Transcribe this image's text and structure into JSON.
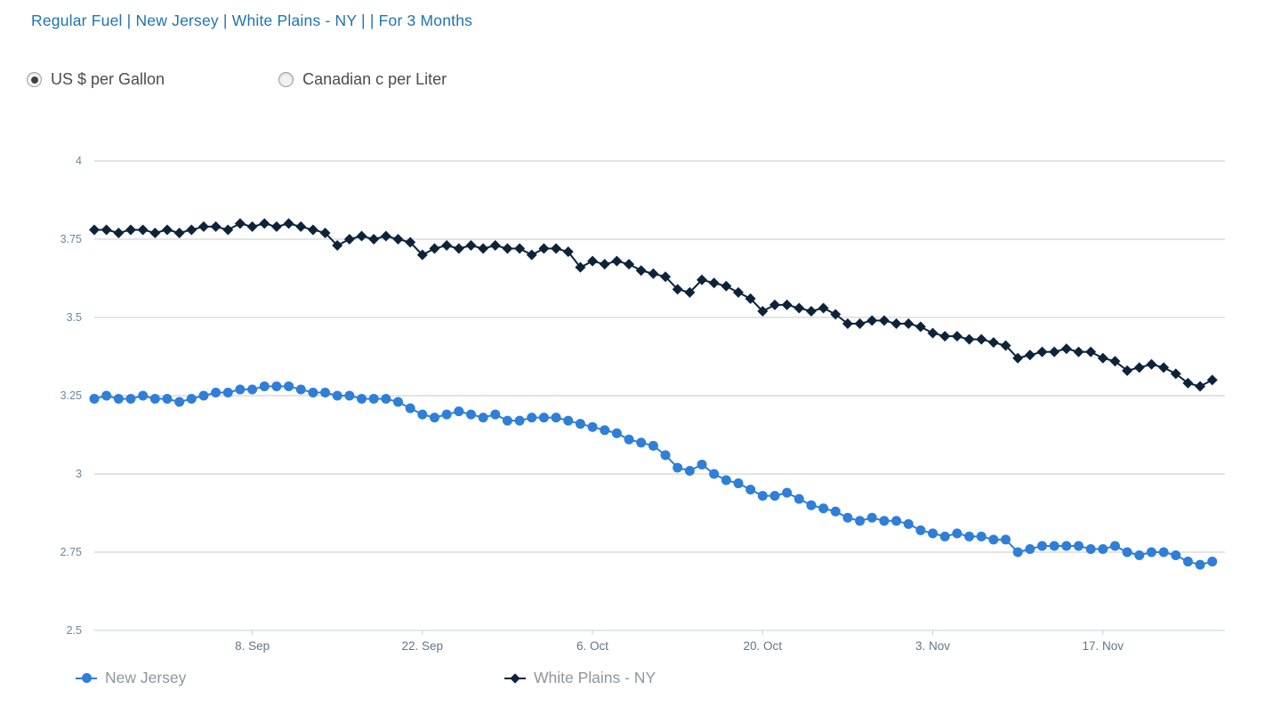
{
  "title": "Regular Fuel | New Jersey | White Plains - NY | | For 3 Months",
  "unit_toggle": {
    "options": [
      {
        "label": "US $ per Gallon",
        "selected": true
      },
      {
        "label": "Canadian c per Liter",
        "selected": false
      }
    ]
  },
  "colors": {
    "title_text": "#1f74b0",
    "radio_label": "#4c4c4c",
    "gridline": "#c9c9c9",
    "axis_line": "#c0d0e0",
    "y_label": "#6d869f",
    "x_label": "#607689",
    "legend_text": "#8f959b",
    "series_new_jersey": "#2f7ed8",
    "series_white_plains": "#0d233a"
  },
  "chart_data": {
    "type": "line",
    "ylim": [
      2.5,
      4
    ],
    "grid": true,
    "legend_position": "bottom",
    "x_unit": "days",
    "yticks": [
      {
        "value": 2.5,
        "label": "2.5"
      },
      {
        "value": 2.75,
        "label": "2.75"
      },
      {
        "value": 3,
        "label": "3"
      },
      {
        "value": 3.25,
        "label": "3.25"
      },
      {
        "value": 3.5,
        "label": "3.5"
      },
      {
        "value": 3.75,
        "label": "3.75"
      },
      {
        "value": 4,
        "label": "4"
      }
    ],
    "xticks": [
      {
        "index": 13,
        "label": "8. Sep"
      },
      {
        "index": 27,
        "label": "22. Sep"
      },
      {
        "index": 41,
        "label": "6. Oct"
      },
      {
        "index": 55,
        "label": "20. Oct"
      },
      {
        "index": 69,
        "label": "3. Nov"
      },
      {
        "index": 83,
        "label": "17. Nov"
      }
    ],
    "series": [
      {
        "name": "New Jersey",
        "color": "#2f7ed8",
        "marker": "circle",
        "values": [
          3.24,
          3.25,
          3.24,
          3.24,
          3.25,
          3.24,
          3.24,
          3.23,
          3.24,
          3.25,
          3.26,
          3.26,
          3.27,
          3.27,
          3.28,
          3.28,
          3.28,
          3.27,
          3.26,
          3.26,
          3.25,
          3.25,
          3.24,
          3.24,
          3.24,
          3.23,
          3.21,
          3.19,
          3.18,
          3.19,
          3.2,
          3.19,
          3.18,
          3.19,
          3.17,
          3.17,
          3.18,
          3.18,
          3.18,
          3.17,
          3.16,
          3.15,
          3.14,
          3.13,
          3.11,
          3.1,
          3.09,
          3.06,
          3.02,
          3.01,
          3.03,
          3.0,
          2.98,
          2.97,
          2.95,
          2.93,
          2.93,
          2.94,
          2.92,
          2.9,
          2.89,
          2.88,
          2.86,
          2.85,
          2.86,
          2.85,
          2.85,
          2.84,
          2.82,
          2.81,
          2.8,
          2.81,
          2.8,
          2.8,
          2.79,
          2.79,
          2.75,
          2.76,
          2.77,
          2.77,
          2.77,
          2.77,
          2.76,
          2.76,
          2.77,
          2.75,
          2.74,
          2.75,
          2.75,
          2.74,
          2.72,
          2.71,
          2.72
        ]
      },
      {
        "name": "White Plains - NY",
        "color": "#0d233a",
        "marker": "diamond",
        "values": [
          3.78,
          3.78,
          3.77,
          3.78,
          3.78,
          3.77,
          3.78,
          3.77,
          3.78,
          3.79,
          3.79,
          3.78,
          3.8,
          3.79,
          3.8,
          3.79,
          3.8,
          3.79,
          3.78,
          3.77,
          3.73,
          3.75,
          3.76,
          3.75,
          3.76,
          3.75,
          3.74,
          3.7,
          3.72,
          3.73,
          3.72,
          3.73,
          3.72,
          3.73,
          3.72,
          3.72,
          3.7,
          3.72,
          3.72,
          3.71,
          3.66,
          3.68,
          3.67,
          3.68,
          3.67,
          3.65,
          3.64,
          3.63,
          3.59,
          3.58,
          3.62,
          3.61,
          3.6,
          3.58,
          3.56,
          3.52,
          3.54,
          3.54,
          3.53,
          3.52,
          3.53,
          3.51,
          3.48,
          3.48,
          3.49,
          3.49,
          3.48,
          3.48,
          3.47,
          3.45,
          3.44,
          3.44,
          3.43,
          3.43,
          3.42,
          3.41,
          3.37,
          3.38,
          3.39,
          3.39,
          3.4,
          3.39,
          3.39,
          3.37,
          3.36,
          3.33,
          3.34,
          3.35,
          3.34,
          3.32,
          3.29,
          3.28,
          3.3
        ]
      }
    ]
  }
}
